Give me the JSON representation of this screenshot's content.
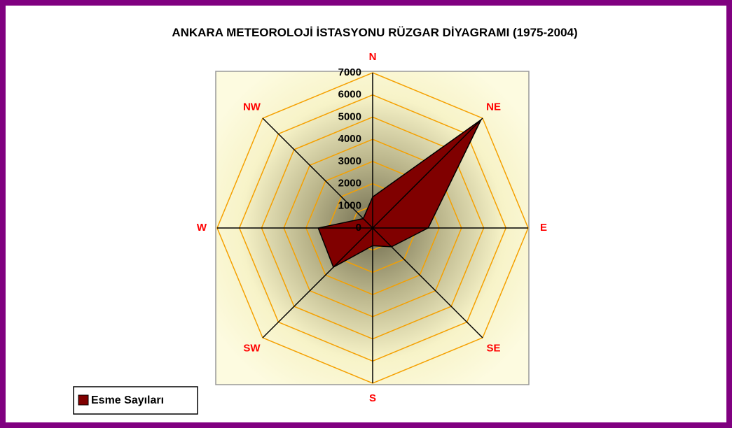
{
  "chart_data": {
    "type": "radar",
    "title": "ANKARA METEOROLOJİ İSTASYONU RÜZGAR DİYAGRAMI (1975-2004)",
    "categories": [
      "N",
      "NE",
      "E",
      "SE",
      "S",
      "SW",
      "W",
      "NW"
    ],
    "series": [
      {
        "name": "Esme Sayıları",
        "color": "#800000",
        "values": [
          1400,
          6900,
          2500,
          1200,
          800,
          2500,
          2450,
          600
        ]
      }
    ],
    "ylim": [
      0,
      7000
    ],
    "yticks": [
      0,
      1000,
      2000,
      3000,
      4000,
      5000,
      6000,
      7000
    ],
    "grid": true,
    "grid_color": "#f5a000",
    "legend": "lower left"
  }
}
